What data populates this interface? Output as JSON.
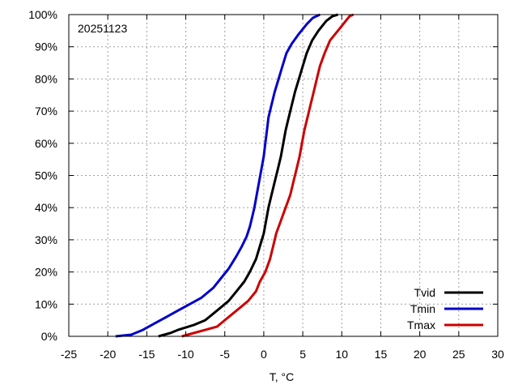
{
  "chart_data": {
    "type": "line",
    "annotation": "20251123",
    "xlabel": "T, °C",
    "ylabel": "",
    "xlim": [
      -25,
      30
    ],
    "ylim": [
      0,
      100
    ],
    "x_ticks": [
      -25,
      -20,
      -15,
      -10,
      -5,
      0,
      5,
      10,
      15,
      20,
      25,
      30
    ],
    "y_ticks": [
      0,
      10,
      20,
      30,
      40,
      50,
      60,
      70,
      80,
      90,
      100
    ],
    "y_tick_suffix": "%",
    "grid": true,
    "legend_position": "bottom-right",
    "series": [
      {
        "name": "Tvid",
        "color": "#000000",
        "points": [
          [
            -13.5,
            0
          ],
          [
            -12,
            1
          ],
          [
            -11,
            2
          ],
          [
            -9,
            3.5
          ],
          [
            -7.5,
            5
          ],
          [
            -6.5,
            7
          ],
          [
            -5.5,
            9
          ],
          [
            -4.5,
            11
          ],
          [
            -3.5,
            14
          ],
          [
            -2.5,
            17
          ],
          [
            -1.8,
            20
          ],
          [
            -1,
            24
          ],
          [
            -0.5,
            28
          ],
          [
            0,
            32
          ],
          [
            0.3,
            36
          ],
          [
            0.6,
            40
          ],
          [
            1,
            44
          ],
          [
            1.4,
            48
          ],
          [
            1.8,
            52
          ],
          [
            2.2,
            56
          ],
          [
            2.5,
            60
          ],
          [
            2.8,
            64
          ],
          [
            3.2,
            68
          ],
          [
            3.6,
            72
          ],
          [
            4,
            76
          ],
          [
            4.5,
            80
          ],
          [
            5,
            84
          ],
          [
            5.5,
            88
          ],
          [
            6.2,
            92
          ],
          [
            7,
            95
          ],
          [
            8,
            98
          ],
          [
            8.8,
            99.5
          ],
          [
            9.5,
            100
          ]
        ]
      },
      {
        "name": "Tmin",
        "color": "#0000cc",
        "points": [
          [
            -19,
            0
          ],
          [
            -17,
            0.5
          ],
          [
            -15.5,
            2
          ],
          [
            -14,
            4
          ],
          [
            -12.5,
            6
          ],
          [
            -11,
            8
          ],
          [
            -9.5,
            10
          ],
          [
            -8,
            12
          ],
          [
            -6.5,
            15
          ],
          [
            -5.5,
            18
          ],
          [
            -4.5,
            21
          ],
          [
            -3.5,
            25
          ],
          [
            -2.8,
            28
          ],
          [
            -2.2,
            31
          ],
          [
            -1.8,
            34
          ],
          [
            -1.5,
            37
          ],
          [
            -1.2,
            40
          ],
          [
            -0.9,
            44
          ],
          [
            -0.6,
            48
          ],
          [
            -0.3,
            52
          ],
          [
            0,
            56
          ],
          [
            0.2,
            60
          ],
          [
            0.4,
            64
          ],
          [
            0.6,
            68
          ],
          [
            1,
            72
          ],
          [
            1.4,
            76
          ],
          [
            1.9,
            80
          ],
          [
            2.4,
            84
          ],
          [
            2.9,
            88
          ],
          [
            3.6,
            91
          ],
          [
            4.5,
            94
          ],
          [
            5.5,
            97
          ],
          [
            6.3,
            99
          ],
          [
            7.2,
            100
          ]
        ]
      },
      {
        "name": "Tmax",
        "color": "#cc0000",
        "points": [
          [
            -10.5,
            0
          ],
          [
            -9,
            1
          ],
          [
            -7.5,
            2
          ],
          [
            -6,
            3
          ],
          [
            -5,
            5
          ],
          [
            -4,
            7
          ],
          [
            -3,
            9
          ],
          [
            -2,
            11
          ],
          [
            -1,
            14
          ],
          [
            -0.5,
            17
          ],
          [
            0.2,
            20
          ],
          [
            0.8,
            24
          ],
          [
            1.2,
            28
          ],
          [
            1.6,
            32
          ],
          [
            2.2,
            36
          ],
          [
            2.8,
            40
          ],
          [
            3.4,
            44
          ],
          [
            3.8,
            48
          ],
          [
            4.2,
            52
          ],
          [
            4.6,
            56
          ],
          [
            4.9,
            60
          ],
          [
            5.2,
            64
          ],
          [
            5.6,
            68
          ],
          [
            6,
            72
          ],
          [
            6.4,
            76
          ],
          [
            6.8,
            80
          ],
          [
            7.2,
            84
          ],
          [
            7.8,
            88
          ],
          [
            8.5,
            92
          ],
          [
            9.5,
            95
          ],
          [
            10.5,
            98
          ],
          [
            11,
            99.5
          ],
          [
            11.5,
            100
          ]
        ]
      }
    ]
  }
}
